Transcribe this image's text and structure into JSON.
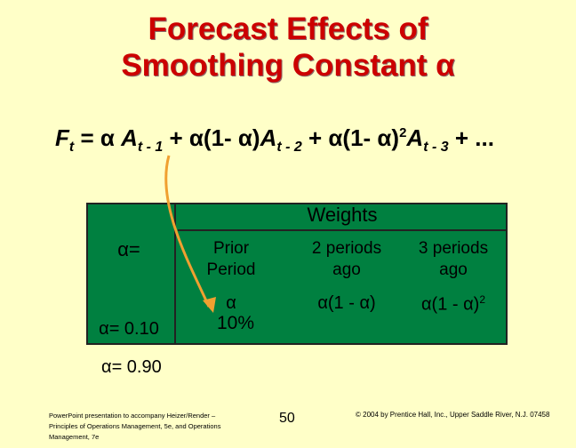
{
  "slide": {
    "title_line1": "Forecast Effects of",
    "title_line2": "Smoothing Constant α",
    "formula": {
      "F": "F",
      "t": "t",
      "eq": " = α ",
      "A1": "A",
      "s1": "t - 1",
      "plus1": " + α(1- α)",
      "A2": "A",
      "s2": "t - 2",
      "plus2": " + α(1- α)",
      "exp": "2",
      "A3": "A",
      "s3": "t - 3",
      "tail": " + ..."
    },
    "table": {
      "weights_label": "Weights",
      "alpha_header": "α=",
      "columns": [
        {
          "line1": "Prior",
          "line2": "Period",
          "symbol": "α"
        },
        {
          "line1": "2 periods",
          "line2": "ago",
          "symbol": "α(1 -  α)"
        },
        {
          "line1": "3 periods",
          "line2": "ago",
          "symbol": "α(1 -  α)",
          "symbol_exp": "2"
        }
      ],
      "row1_label": "α= 0.10",
      "row1_value": "10%",
      "row2_label": "α= 0.90"
    },
    "footer": {
      "left": "PowerPoint presentation to accompany Heizer/Render – Principles of Operations Management, 5e, and Operations Management, 7e",
      "page": "50",
      "right": "© 2004 by Prentice Hall, Inc., Upper Saddle River, N.J. 07458"
    },
    "colors": {
      "title": "#cc0000",
      "table_bg": "#008040",
      "background": "#ffffc8",
      "arrow": "#f0a030"
    }
  }
}
